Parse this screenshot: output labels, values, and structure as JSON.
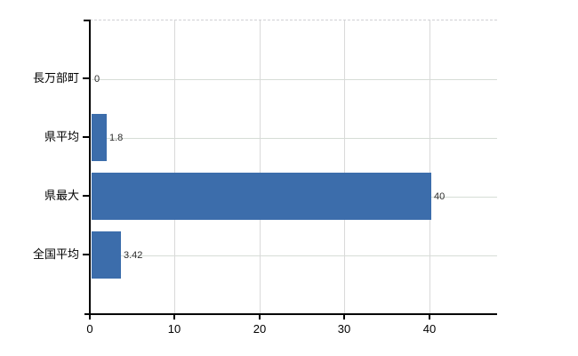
{
  "chart_data": {
    "type": "bar",
    "orientation": "horizontal",
    "title": "",
    "xlabel": "",
    "ylabel": "",
    "categories": [
      "長万部町",
      "県平均",
      "県最大",
      "全国平均"
    ],
    "values": [
      0,
      1.8,
      40,
      3.42
    ],
    "value_labels": [
      "0",
      "1.8",
      "40",
      "3.42"
    ],
    "xticks": [
      0,
      10,
      20,
      30,
      40
    ],
    "xtick_labels": [
      "0",
      "10",
      "20",
      "30",
      "40"
    ],
    "xlim": [
      0,
      48
    ],
    "grid": true,
    "legend": "none",
    "colors": {
      "bar": "#3c6dab",
      "gridline_horizontal": "#d6ddd6",
      "gridline_vertical": "#d9d9d9",
      "top_border": "#cfcfd4",
      "axis": "#000000",
      "value_label_text": "#2e2e2e",
      "tick_label_text": "#000000"
    }
  }
}
